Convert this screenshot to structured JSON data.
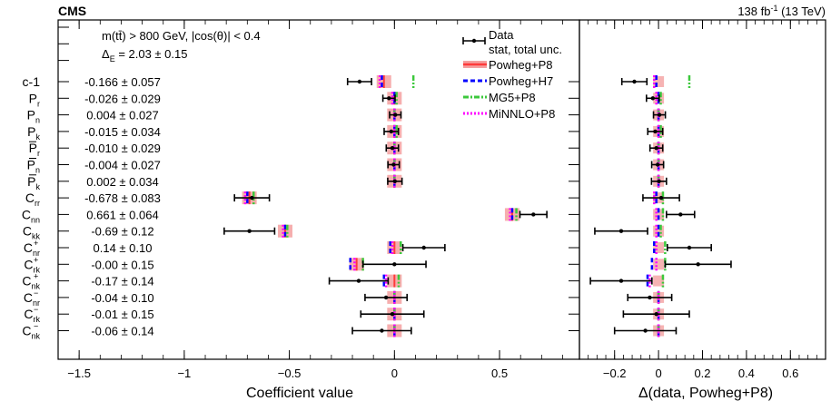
{
  "header": {
    "experiment": "CMS",
    "lumi": "138 fb",
    "lumi_sup": "-1",
    "energy": " (13 TeV)"
  },
  "annotations": {
    "selection": "m(tt̄) > 800 GeV, |cos(θ)| < 0.4",
    "delta_e": "Δ",
    "delta_e_sub": "E",
    "delta_e_value": " = 2.03 ± 0.15"
  },
  "legend": [
    {
      "label": "Data",
      "label2": "stat, total unc.",
      "style": "data"
    },
    {
      "label": "Powheg+P8",
      "style": "band",
      "color": "#ff3b3b"
    },
    {
      "label": "Powheg+H7",
      "style": "dash",
      "color": "#0000ff"
    },
    {
      "label": "MG5+P8",
      "style": "dashdot",
      "color": "#3cc83c"
    },
    {
      "label": "MiNNLO+P8",
      "style": "dot",
      "color": "#ff00ff"
    }
  ],
  "chart_data": [
    {
      "type": "scatter",
      "xlabel": "Coefficient value",
      "xlim": [
        -1.6,
        0.88
      ],
      "xticks": [
        -1.5,
        -1,
        -0.5,
        0,
        0.5
      ],
      "xtick_labels": [
        "−1.5",
        "−1",
        "−0.5",
        "0",
        "0.5"
      ],
      "categories": [
        {
          "main": "c-1",
          "sub": "",
          "sup": "",
          "bar": false
        },
        {
          "main": "P",
          "sub": "r",
          "sup": "",
          "bar": false
        },
        {
          "main": "P",
          "sub": "n",
          "sup": "",
          "bar": false
        },
        {
          "main": "P",
          "sub": "k",
          "sup": "",
          "bar": false
        },
        {
          "main": "P",
          "sub": "r",
          "sup": "",
          "bar": true
        },
        {
          "main": "P",
          "sub": "n",
          "sup": "",
          "bar": true
        },
        {
          "main": "P",
          "sub": "k",
          "sup": "",
          "bar": true
        },
        {
          "main": "C",
          "sub": "rr",
          "sup": "",
          "bar": false
        },
        {
          "main": "C",
          "sub": "nn",
          "sup": "",
          "bar": false
        },
        {
          "main": "C",
          "sub": "kk",
          "sup": "",
          "bar": false
        },
        {
          "main": "C",
          "sub": "nr",
          "sup": "+",
          "bar": false
        },
        {
          "main": "C",
          "sub": "rk",
          "sup": "+",
          "bar": false
        },
        {
          "main": "C",
          "sub": "nk",
          "sup": "+",
          "bar": false
        },
        {
          "main": "C",
          "sub": "nr",
          "sup": "−",
          "bar": false
        },
        {
          "main": "C",
          "sub": "rk",
          "sup": "−",
          "bar": false
        },
        {
          "main": "C",
          "sub": "nk",
          "sup": "−",
          "bar": false
        }
      ],
      "value_labels": [
        "-0.166 ± 0.057",
        "-0.026 ± 0.029",
        "0.004 ± 0.027",
        "-0.015 ± 0.034",
        "-0.010 ± 0.029",
        "-0.004 ± 0.027",
        "0.002 ± 0.034",
        "-0.678 ± 0.083",
        "0.661 ± 0.064",
        "-0.69 ± 0.12",
        "0.14 ± 0.10",
        "-0.00 ± 0.15",
        "-0.17 ± 0.14",
        "-0.04 ± 0.10",
        "-0.01 ± 0.15",
        "-0.06 ± 0.14"
      ],
      "series": [
        {
          "name": "Data",
          "values": [
            -0.166,
            -0.026,
            0.004,
            -0.015,
            -0.01,
            -0.004,
            0.002,
            -0.678,
            0.661,
            -0.69,
            0.14,
            -0.0,
            -0.17,
            -0.04,
            -0.01,
            -0.06
          ],
          "total_unc": [
            0.057,
            0.029,
            0.027,
            0.034,
            0.029,
            0.027,
            0.034,
            0.083,
            0.064,
            0.12,
            0.1,
            0.15,
            0.14,
            0.1,
            0.15,
            0.14
          ]
        },
        {
          "name": "Powheg+P8",
          "values": [
            -0.05,
            0,
            0,
            0,
            0,
            0,
            0,
            -0.69,
            0.56,
            -0.52,
            0.0,
            -0.18,
            0.0,
            0,
            0,
            0
          ]
        },
        {
          "name": "Powheg+H7",
          "values": [
            -0.06,
            0,
            0,
            0,
            0,
            0,
            0,
            -0.7,
            0.56,
            -0.52,
            -0.02,
            -0.21,
            -0.05,
            0,
            0,
            0
          ]
        },
        {
          "name": "MG5+P8",
          "values": [
            0.09,
            0.01,
            0,
            0.01,
            0,
            0,
            0,
            -0.67,
            0.58,
            -0.51,
            0.03,
            -0.15,
            0.02,
            0,
            0,
            0
          ]
        },
        {
          "name": "MiNNLO+P8",
          "values": [
            -0.07,
            -0.01,
            0,
            0,
            0,
            0,
            0,
            -0.71,
            0.55,
            -0.53,
            -0.01,
            -0.19,
            -0.04,
            0,
            0,
            0
          ]
        }
      ]
    },
    {
      "type": "scatter",
      "xlabel": "Δ(data, Powheg+P8)",
      "xlim": [
        -0.36,
        0.76
      ],
      "xticks": [
        -0.2,
        0,
        0.2,
        0.4,
        0.6
      ],
      "xtick_labels": [
        "−0.2",
        "0",
        "0.2",
        "0.4",
        "0.6"
      ],
      "series": [
        {
          "name": "Data",
          "values": [
            -0.11,
            -0.026,
            0.004,
            -0.015,
            -0.01,
            -0.004,
            0.002,
            0.012,
            0.1,
            -0.17,
            0.14,
            0.18,
            -0.17,
            -0.04,
            -0.01,
            -0.06
          ],
          "total_unc": [
            0.057,
            0.029,
            0.027,
            0.034,
            0.029,
            0.027,
            0.034,
            0.083,
            0.064,
            0.12,
            0.1,
            0.15,
            0.14,
            0.1,
            0.15,
            0.14
          ]
        },
        {
          "name": "Powheg+H7",
          "values": [
            -0.01,
            0,
            0,
            0,
            0,
            0,
            0,
            -0.01,
            0.0,
            0.0,
            -0.02,
            -0.03,
            -0.05,
            0,
            0,
            0
          ]
        },
        {
          "name": "MG5+P8",
          "values": [
            0.14,
            0.01,
            0,
            0.01,
            0,
            0,
            0,
            0.02,
            0.02,
            0.01,
            0.03,
            0.03,
            0.02,
            0,
            0,
            0
          ]
        },
        {
          "name": "MiNNLO+P8",
          "values": [
            -0.02,
            -0.01,
            0,
            0,
            0,
            0,
            0,
            -0.02,
            -0.01,
            -0.01,
            -0.01,
            -0.01,
            -0.04,
            0,
            0,
            0
          ]
        }
      ]
    }
  ]
}
